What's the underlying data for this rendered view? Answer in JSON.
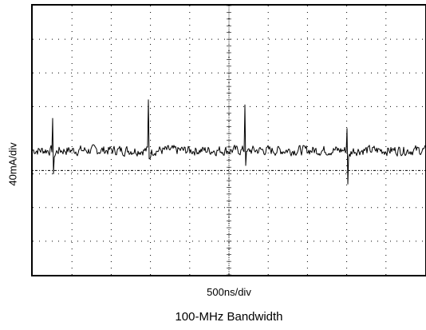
{
  "chart_data": {
    "type": "line",
    "title": "100-MHz Bandwidth",
    "xlabel": "500ns/div",
    "ylabel": "40mA/div",
    "grid": true,
    "divisions": {
      "x": 10,
      "y": 8
    },
    "xlim": [
      0,
      10
    ],
    "ylim": [
      -4,
      4
    ],
    "reference_level": -0.9,
    "baseline_level": -0.3,
    "spikes": [
      {
        "x": 0.5,
        "peak": 0.65,
        "dip": -1.0
      },
      {
        "x": 2.95,
        "peak": 1.2,
        "dip": -0.55
      },
      {
        "x": 5.4,
        "peak": 1.05,
        "dip": -0.75
      },
      {
        "x": 8.0,
        "peak": 0.35,
        "dip": -1.3
      }
    ],
    "noise_amplitude": 0.13
  }
}
